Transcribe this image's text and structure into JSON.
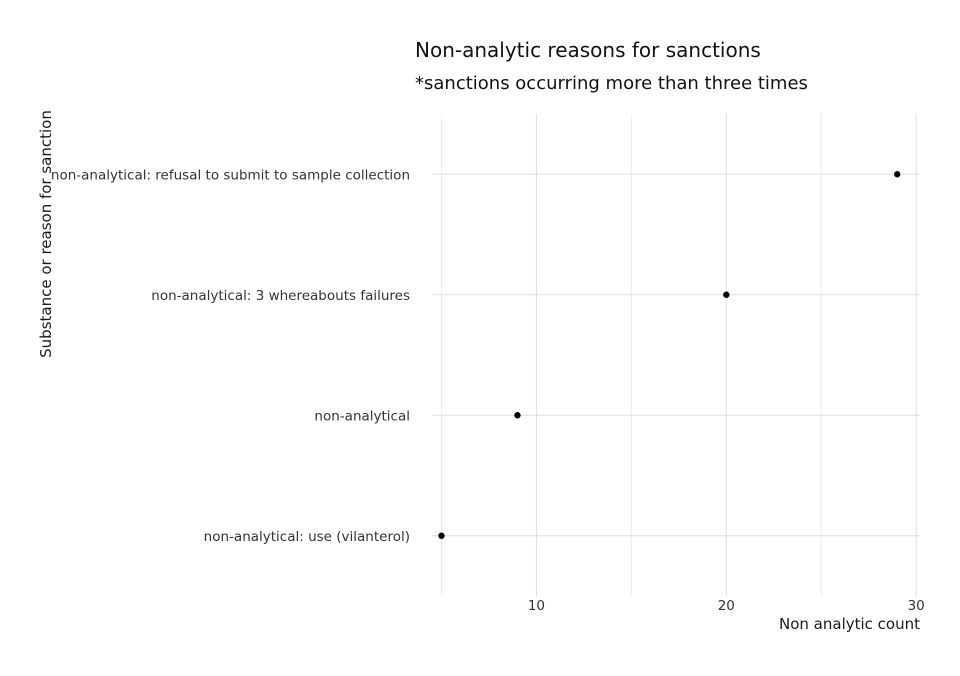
{
  "chart_data": {
    "type": "scatter",
    "title": "Non-analytic reasons for sanctions",
    "subtitle": "*sanctions occurring more than three times",
    "xlabel": "Non analytic count",
    "ylabel": "Substance or reason for sanction",
    "xlim": [
      4.5,
      30.2
    ],
    "x_ticks": [
      10,
      20,
      30
    ],
    "x_minor_ticks": [
      5,
      15,
      25
    ],
    "grid": true,
    "legend": "none",
    "point_color": "#000000",
    "categories": [
      "non-analytical: refusal to submit to sample collection",
      "non-analytical: 3 whereabouts failures",
      "non-analytical",
      "non-analytical: use (vilanterol)"
    ],
    "values": [
      29,
      20,
      9,
      5
    ]
  }
}
